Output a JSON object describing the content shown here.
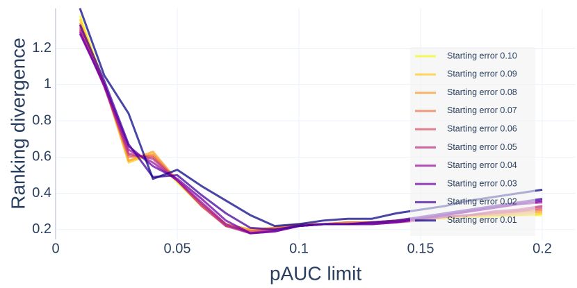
{
  "chart_data": {
    "type": "line",
    "x_label": "pAUC limit",
    "y_label": "Ranking divergence",
    "x": [
      0.01,
      0.02,
      0.03,
      0.04,
      0.05,
      0.06,
      0.07,
      0.08,
      0.09,
      0.1,
      0.11,
      0.12,
      0.13,
      0.14,
      0.15,
      0.16,
      0.17,
      0.18,
      0.19,
      0.2
    ],
    "xlim": [
      0,
      0.2137
    ],
    "xticks": [
      0,
      0.05,
      0.1,
      0.15,
      0.2
    ],
    "ylim": [
      0.146,
      1.42
    ],
    "yticks": [
      0.2,
      0.4,
      0.6,
      0.8,
      1,
      1.2
    ],
    "grid": true,
    "series": [
      {
        "name": "Starting error 0.10",
        "color": "#f0f921",
        "values": [
          1.38,
          1.0,
          0.58,
          0.61,
          0.46,
          0.33,
          0.23,
          0.2,
          0.21,
          0.23,
          0.23,
          0.24,
          0.24,
          0.25,
          0.26,
          0.26,
          0.27,
          0.27,
          0.28,
          0.28
        ]
      },
      {
        "name": "Starting error 0.09",
        "color": "#fdca26",
        "values": [
          1.36,
          1.0,
          0.57,
          0.62,
          0.47,
          0.33,
          0.23,
          0.2,
          0.21,
          0.23,
          0.23,
          0.24,
          0.24,
          0.25,
          0.26,
          0.27,
          0.27,
          0.28,
          0.28,
          0.29
        ]
      },
      {
        "name": "Starting error 0.08",
        "color": "#fb9f3a",
        "values": [
          1.34,
          1.0,
          0.58,
          0.63,
          0.47,
          0.34,
          0.23,
          0.2,
          0.21,
          0.23,
          0.23,
          0.24,
          0.24,
          0.25,
          0.26,
          0.27,
          0.28,
          0.28,
          0.29,
          0.3
        ]
      },
      {
        "name": "Starting error 0.07",
        "color": "#ed7953",
        "values": [
          1.32,
          1.0,
          0.6,
          0.61,
          0.47,
          0.33,
          0.22,
          0.19,
          0.21,
          0.23,
          0.23,
          0.24,
          0.24,
          0.25,
          0.26,
          0.27,
          0.28,
          0.29,
          0.3,
          0.31
        ]
      },
      {
        "name": "Starting error 0.06",
        "color": "#d8576b",
        "values": [
          1.31,
          0.99,
          0.61,
          0.6,
          0.47,
          0.33,
          0.22,
          0.19,
          0.2,
          0.22,
          0.23,
          0.23,
          0.24,
          0.25,
          0.26,
          0.27,
          0.28,
          0.29,
          0.3,
          0.32
        ]
      },
      {
        "name": "Starting error 0.05",
        "color": "#bd3786",
        "values": [
          1.3,
          0.99,
          0.62,
          0.59,
          0.47,
          0.34,
          0.22,
          0.18,
          0.2,
          0.22,
          0.23,
          0.23,
          0.24,
          0.24,
          0.25,
          0.27,
          0.28,
          0.3,
          0.31,
          0.33
        ]
      },
      {
        "name": "Starting error 0.04",
        "color": "#9c179e",
        "values": [
          1.29,
          0.99,
          0.64,
          0.57,
          0.47,
          0.35,
          0.23,
          0.18,
          0.19,
          0.22,
          0.23,
          0.23,
          0.23,
          0.24,
          0.26,
          0.28,
          0.3,
          0.32,
          0.34,
          0.35
        ]
      },
      {
        "name": "Starting error 0.03",
        "color": "#7201a8",
        "values": [
          1.28,
          1.0,
          0.66,
          0.55,
          0.48,
          0.37,
          0.25,
          0.18,
          0.19,
          0.22,
          0.23,
          0.23,
          0.23,
          0.24,
          0.26,
          0.28,
          0.3,
          0.32,
          0.34,
          0.36
        ]
      },
      {
        "name": "Starting error 0.02",
        "color": "#46039f",
        "values": [
          1.33,
          1.02,
          0.67,
          0.49,
          0.5,
          0.39,
          0.29,
          0.21,
          0.2,
          0.22,
          0.23,
          0.23,
          0.24,
          0.25,
          0.27,
          0.29,
          0.31,
          0.33,
          0.35,
          0.37
        ]
      },
      {
        "name": "Starting error 0.01",
        "color": "#0d0887",
        "values": [
          1.42,
          1.05,
          0.84,
          0.48,
          0.53,
          0.44,
          0.36,
          0.28,
          0.22,
          0.23,
          0.25,
          0.26,
          0.26,
          0.29,
          0.31,
          0.33,
          0.36,
          0.38,
          0.4,
          0.42
        ]
      }
    ]
  }
}
